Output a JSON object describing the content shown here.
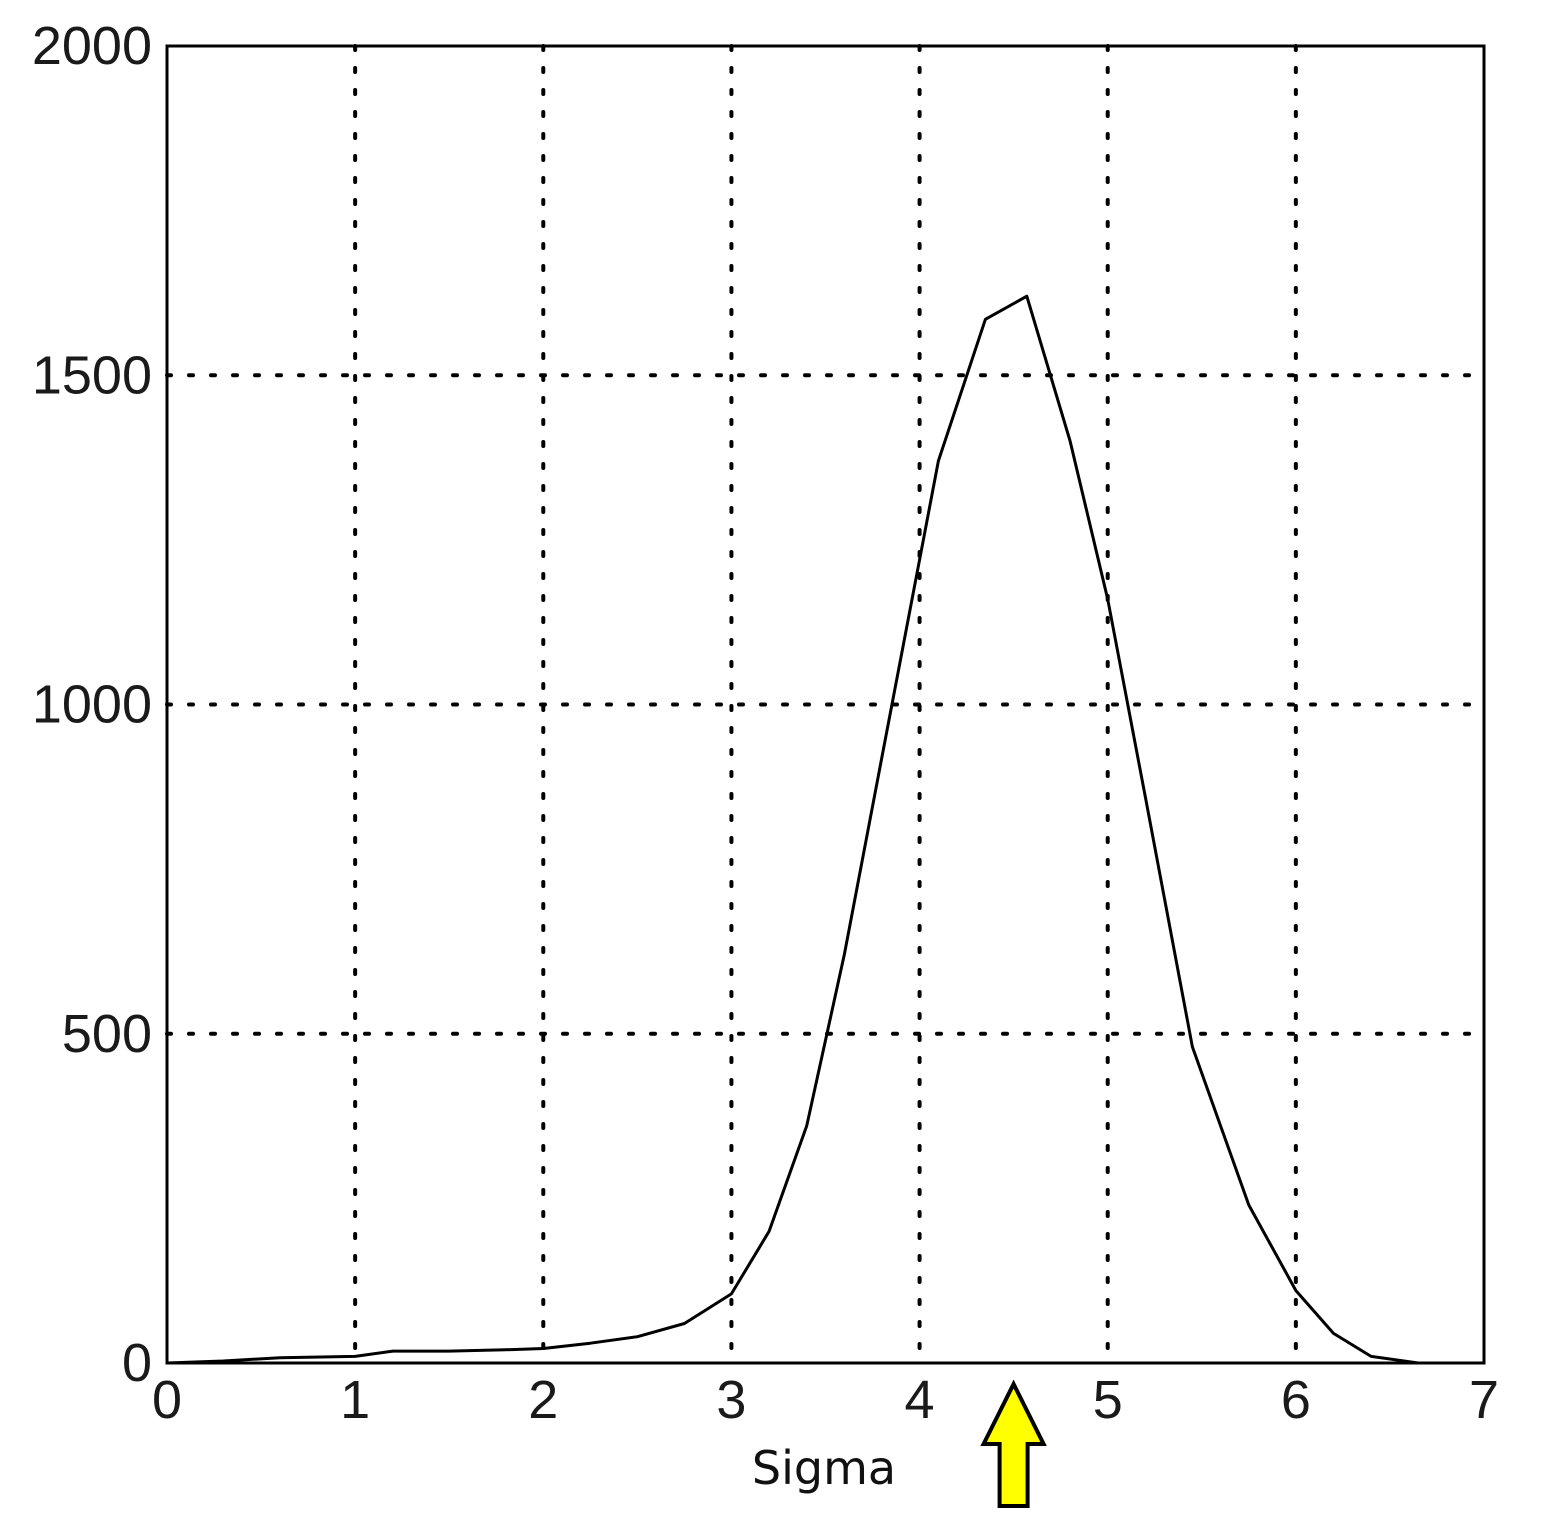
{
  "chart_data": {
    "type": "line",
    "xlabel": "Sigma",
    "ylabel": "",
    "xlim": [
      0,
      7
    ],
    "ylim": [
      0,
      2000
    ],
    "xticks": [
      0,
      1,
      2,
      3,
      4,
      5,
      6,
      7
    ],
    "yticks": [
      0,
      500,
      1000,
      1500,
      2000
    ],
    "xtick_labels": [
      "0",
      "1",
      "2",
      "3",
      "4",
      "5",
      "6",
      "7"
    ],
    "ytick_labels": [
      "0",
      "500",
      "1000",
      "1500",
      "2000"
    ],
    "grid": true,
    "line_color": "#000000",
    "series": [
      {
        "x": [
          0,
          0.3,
          0.6,
          1.0,
          1.2,
          1.5,
          1.8,
          2.0,
          2.25,
          2.5,
          2.75,
          3.0,
          3.2,
          3.4,
          3.6,
          3.8,
          4.0,
          4.1,
          4.35,
          4.57,
          4.8,
          5.0,
          5.2,
          5.45,
          5.75,
          6.0,
          6.2,
          6.4,
          6.65
        ],
        "y": [
          0,
          3,
          8,
          10,
          18,
          18,
          20,
          22,
          30,
          40,
          60,
          105,
          200,
          360,
          620,
          920,
          1220,
          1370,
          1585,
          1620,
          1400,
          1160,
          860,
          480,
          240,
          110,
          45,
          10,
          0
        ]
      }
    ]
  },
  "annotations": {
    "arrow_x": 4.5,
    "arrow_color": "#ffff00",
    "arrow_icon": "up-arrow-icon"
  }
}
